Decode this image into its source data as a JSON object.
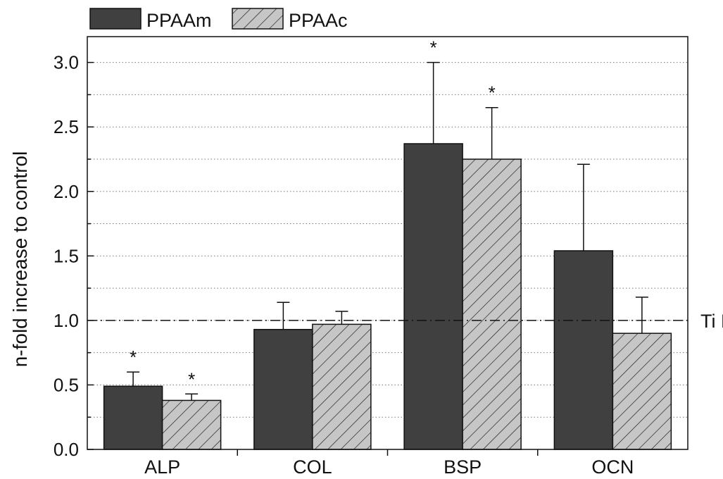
{
  "chart_data": {
    "type": "bar",
    "title": "",
    "xlabel": "",
    "ylabel": "n-fold increase to control",
    "ylim": [
      0,
      3.2
    ],
    "yticks": [
      "0.0",
      "0.5",
      "1.0",
      "1.5",
      "2.0",
      "2.5",
      "3.0"
    ],
    "grid": true,
    "legend_position": "top-left",
    "categories": [
      "ALP",
      "COL",
      "BSP",
      "OCN"
    ],
    "series": [
      {
        "name": "PPAAm",
        "color": "#404040",
        "pattern": "solid",
        "values": [
          0.49,
          0.93,
          2.37,
          1.54
        ],
        "errors": [
          0.11,
          0.21,
          0.63,
          0.67
        ],
        "significant": [
          true,
          false,
          true,
          false
        ]
      },
      {
        "name": "PPAAc",
        "color": "#c6c6c6",
        "pattern": "hatched",
        "values": [
          0.38,
          0.97,
          2.25,
          0.9
        ],
        "errors": [
          0.05,
          0.1,
          0.4,
          0.28
        ],
        "significant": [
          true,
          false,
          true,
          false
        ]
      }
    ],
    "reference_line": {
      "value": 1.0,
      "label": "Ti P",
      "style": "dash-dot"
    },
    "significance_marker": "*"
  }
}
